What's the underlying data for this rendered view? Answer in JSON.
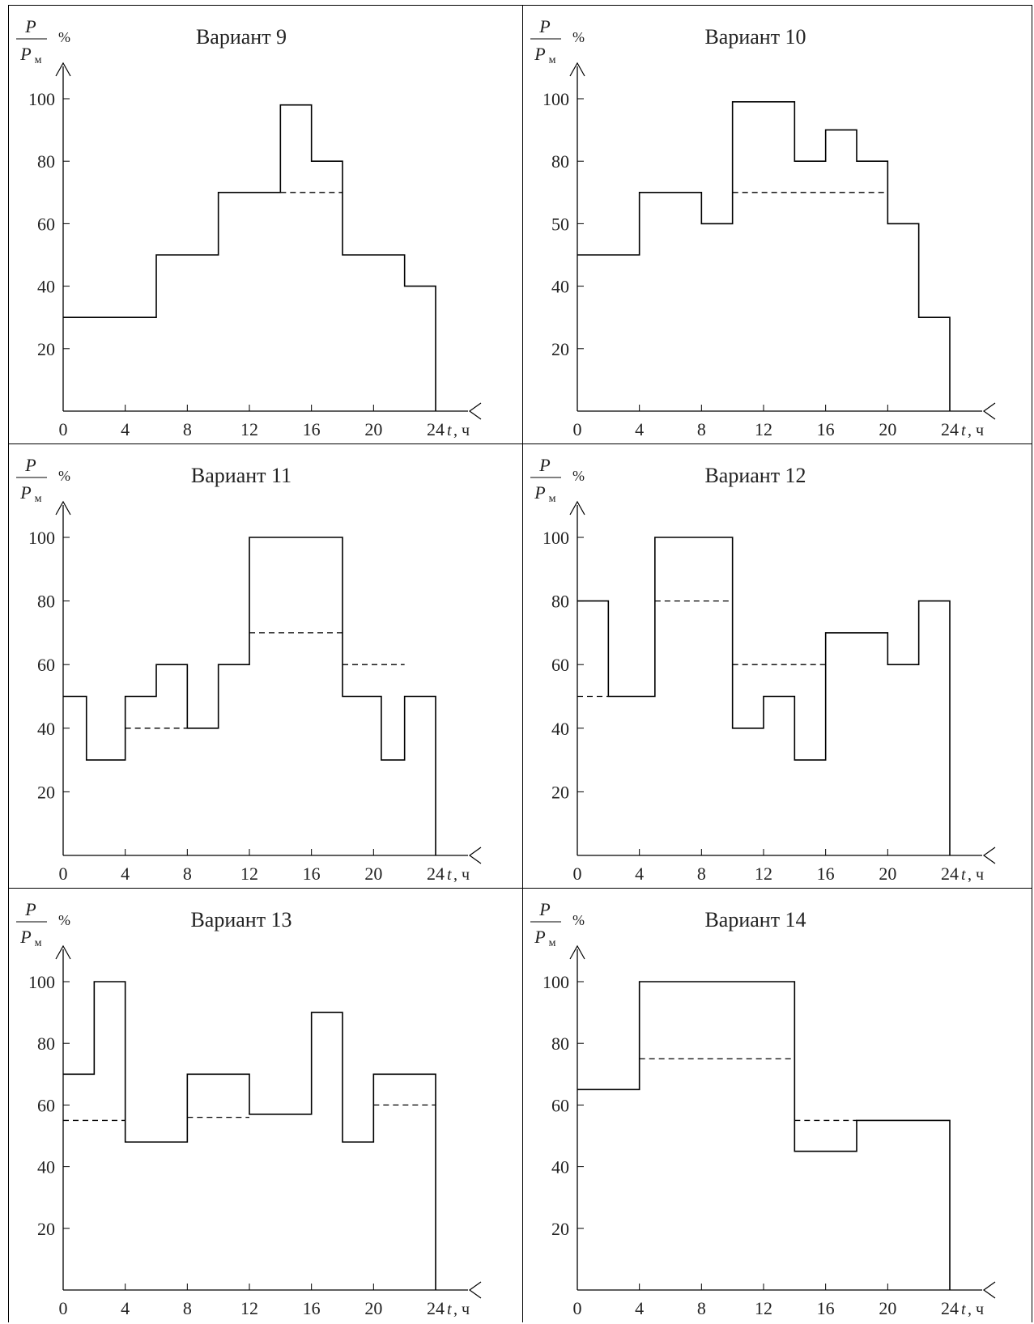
{
  "ylabel": {
    "numerator": "P",
    "denominator": "P",
    "subscript": "м",
    "unit": "%"
  },
  "xlabel": {
    "var": "t",
    "unit": ", ч"
  },
  "chart_data": [
    {
      "type": "step",
      "title": "Вариант 9",
      "xlim": [
        0,
        24
      ],
      "ylim": [
        0,
        100
      ],
      "xticks": [
        "0",
        "4",
        "8",
        "12",
        "16",
        "20",
        "24"
      ],
      "yticks": [
        "20",
        "40",
        "60",
        "80",
        "100"
      ],
      "steps": [
        [
          0,
          6,
          30
        ],
        [
          6,
          10,
          50
        ],
        [
          10,
          14,
          70
        ],
        [
          14,
          16,
          98
        ],
        [
          16,
          18,
          80
        ],
        [
          18,
          22,
          50
        ],
        [
          22,
          24,
          40
        ]
      ],
      "dashed": [
        [
          14,
          18,
          70
        ]
      ]
    },
    {
      "type": "step",
      "title": "Вариант 10",
      "xlim": [
        0,
        24
      ],
      "ylim": [
        0,
        100
      ],
      "xticks": [
        "0",
        "4",
        "8",
        "12",
        "16",
        "20",
        "24"
      ],
      "yticks": [
        "20",
        "40",
        "50",
        "80",
        "100"
      ],
      "steps": [
        [
          0,
          4,
          50
        ],
        [
          4,
          8,
          70
        ],
        [
          8,
          10,
          60
        ],
        [
          10,
          14,
          99
        ],
        [
          14,
          16,
          80
        ],
        [
          16,
          18,
          90
        ],
        [
          18,
          20,
          80
        ],
        [
          20,
          22,
          60
        ],
        [
          22,
          24,
          30
        ]
      ],
      "dashed": [
        [
          10,
          20,
          70
        ]
      ]
    },
    {
      "type": "step",
      "title": "Вариант 11",
      "xlim": [
        0,
        24
      ],
      "ylim": [
        0,
        100
      ],
      "xticks": [
        "0",
        "4",
        "8",
        "12",
        "16",
        "20",
        "24"
      ],
      "yticks": [
        "20",
        "40",
        "60",
        "80",
        "100"
      ],
      "steps": [
        [
          0,
          1.5,
          50
        ],
        [
          1.5,
          4,
          30
        ],
        [
          4,
          6,
          50
        ],
        [
          6,
          8,
          60
        ],
        [
          8,
          10,
          40
        ],
        [
          10,
          12,
          60
        ],
        [
          12,
          18,
          100
        ],
        [
          18,
          20.5,
          50
        ],
        [
          20.5,
          22,
          30
        ],
        [
          22,
          24,
          50
        ]
      ],
      "dashed": [
        [
          4,
          8,
          40
        ],
        [
          12,
          18,
          70
        ],
        [
          18,
          22,
          60
        ]
      ]
    },
    {
      "type": "step",
      "title": "Вариант 12",
      "xlim": [
        0,
        24
      ],
      "ylim": [
        0,
        100
      ],
      "xticks": [
        "0",
        "4",
        "8",
        "12",
        "16",
        "20",
        "24"
      ],
      "yticks": [
        "20",
        "40",
        "60",
        "80",
        "100"
      ],
      "steps": [
        [
          0,
          2,
          80
        ],
        [
          2,
          5,
          50
        ],
        [
          5,
          10,
          100
        ],
        [
          10,
          12,
          40
        ],
        [
          12,
          14,
          50
        ],
        [
          14,
          16,
          30
        ],
        [
          16,
          20,
          70
        ],
        [
          20,
          22,
          60
        ],
        [
          22,
          24,
          80
        ]
      ],
      "dashed": [
        [
          0,
          2,
          50
        ],
        [
          5,
          10,
          80
        ],
        [
          10,
          16,
          60
        ]
      ]
    },
    {
      "type": "step",
      "title": "Вариант 13",
      "xlim": [
        0,
        24
      ],
      "ylim": [
        0,
        100
      ],
      "xticks": [
        "0",
        "4",
        "8",
        "12",
        "16",
        "20",
        "24"
      ],
      "yticks": [
        "20",
        "40",
        "60",
        "80",
        "100"
      ],
      "steps": [
        [
          0,
          2,
          70
        ],
        [
          2,
          4,
          100
        ],
        [
          4,
          8,
          48
        ],
        [
          8,
          12,
          70
        ],
        [
          12,
          16,
          57
        ],
        [
          16,
          18,
          90
        ],
        [
          18,
          20,
          48
        ],
        [
          20,
          24,
          70
        ]
      ],
      "dashed": [
        [
          0,
          4,
          55
        ],
        [
          8,
          12,
          56
        ],
        [
          20,
          24,
          60
        ]
      ]
    },
    {
      "type": "step",
      "title": "Вариант 14",
      "xlim": [
        0,
        24
      ],
      "ylim": [
        0,
        100
      ],
      "xticks": [
        "0",
        "4",
        "8",
        "12",
        "16",
        "20",
        "24"
      ],
      "yticks": [
        "20",
        "40",
        "60",
        "80",
        "100"
      ],
      "steps": [
        [
          0,
          4,
          65
        ],
        [
          4,
          14,
          100
        ],
        [
          14,
          18,
          45
        ],
        [
          18,
          24,
          55
        ]
      ],
      "dashed": [
        [
          4,
          14,
          75
        ],
        [
          14,
          18,
          55
        ]
      ]
    }
  ]
}
